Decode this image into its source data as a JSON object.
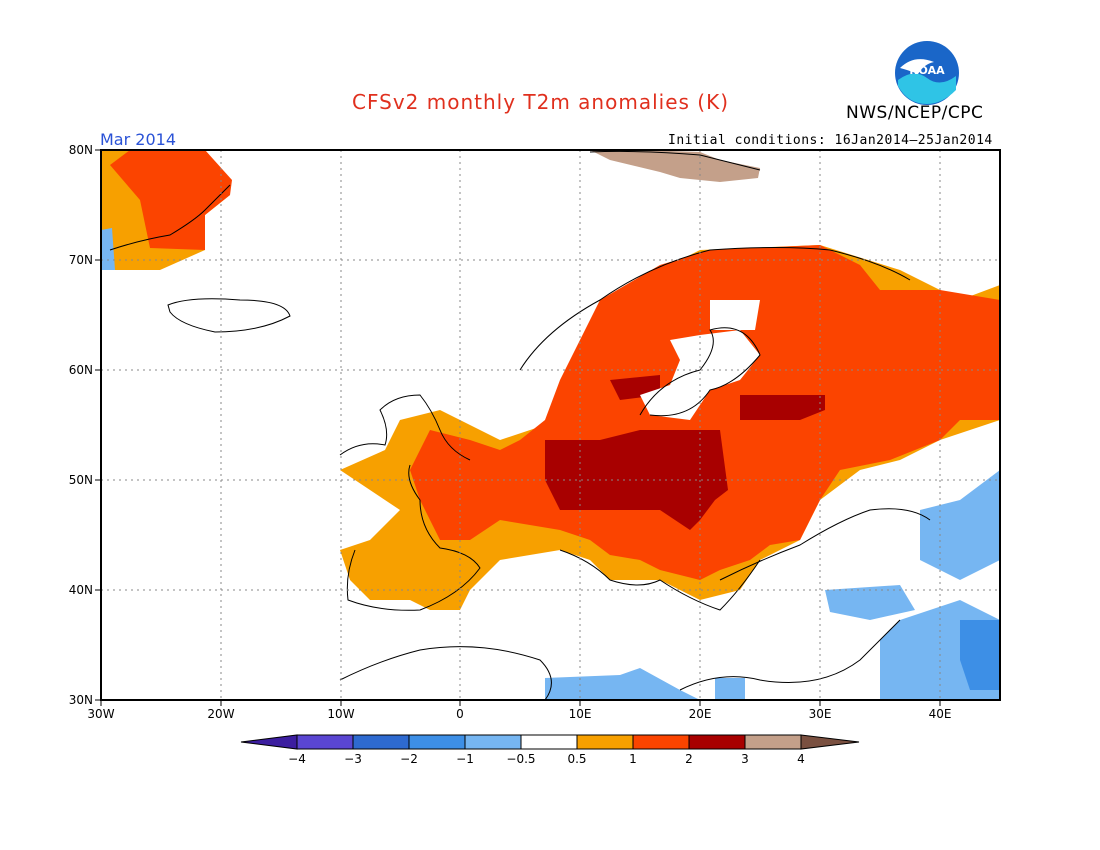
{
  "header": {
    "title": "CFSv2 monthly T2m anomalies (K)",
    "organization": "NWS/NCEP/CPC",
    "logo_text": "NOAA",
    "month": "Mar 2014",
    "initial_conditions": "Initial conditions: 16Jan2014–25Jan2014"
  },
  "map": {
    "lat_labels": [
      "80N",
      "70N",
      "60N",
      "50N",
      "40N",
      "30N"
    ],
    "lon_labels": [
      "30W",
      "20W",
      "10W",
      "0",
      "10E",
      "20E",
      "30E",
      "40E"
    ],
    "lon_range": [
      -30,
      45
    ],
    "lat_range": [
      30,
      80
    ],
    "grid": true
  },
  "colorbar": {
    "tick_labels": [
      "−4",
      "−3",
      "−2",
      "−1",
      "−0.5",
      "0.5",
      "1",
      "2",
      "3",
      "4"
    ],
    "colors": [
      "#3c1ea0",
      "#5a46d2",
      "#2e6ad0",
      "#3d8fe6",
      "#76b6f2",
      "#ffffff",
      "#f7a000",
      "#fb4400",
      "#a80000",
      "#c4a08a",
      "#7a5040"
    ]
  }
}
